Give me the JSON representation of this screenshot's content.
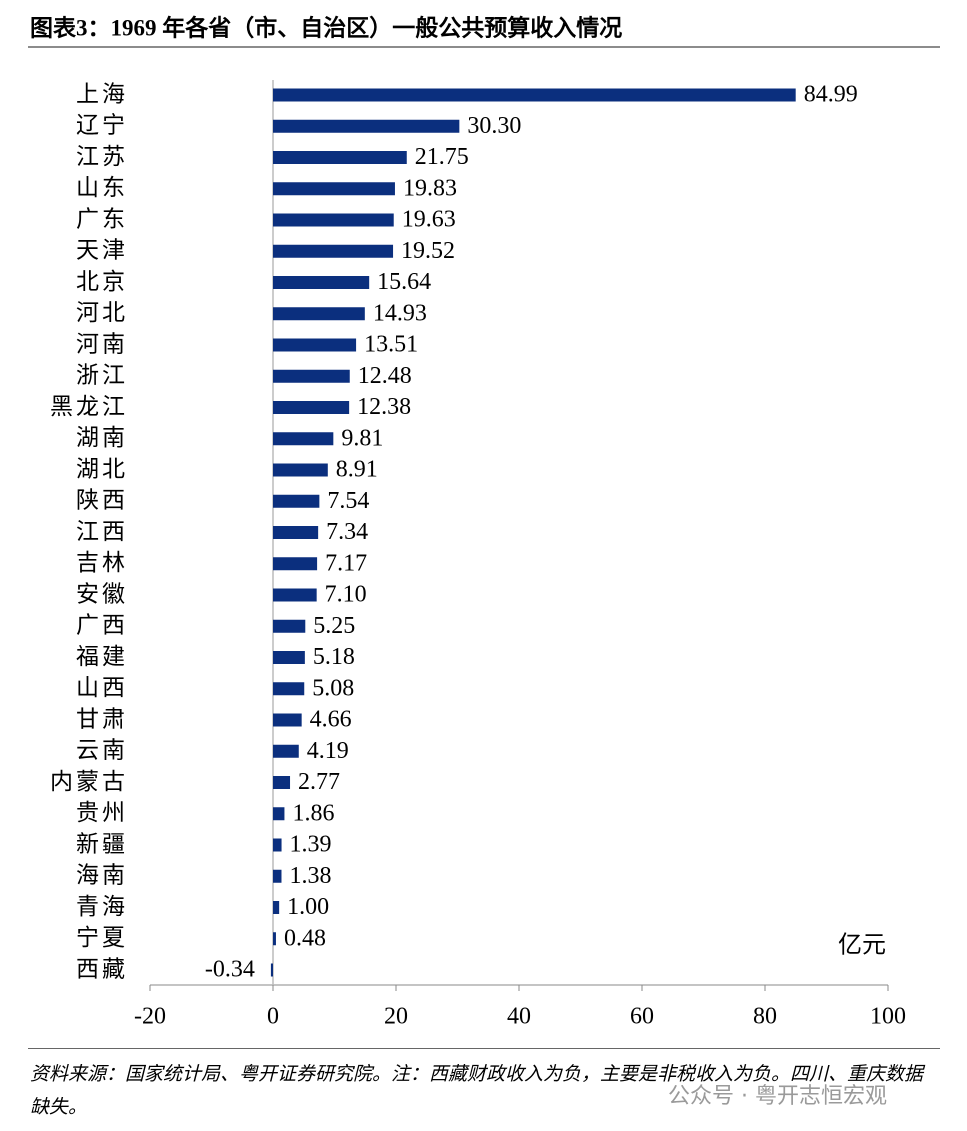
{
  "chart_data": {
    "type": "hbar",
    "title": "图表3：1969 年各省（市、自治区）一般公共预算收入情况",
    "categories": [
      "上海",
      "辽宁",
      "江苏",
      "山东",
      "广东",
      "天津",
      "北京",
      "河北",
      "河南",
      "浙江",
      "黑龙江",
      "湖南",
      "湖北",
      "陕西",
      "江西",
      "吉林",
      "安徽",
      "广西",
      "福建",
      "山西",
      "甘肃",
      "云南",
      "内蒙古",
      "贵州",
      "新疆",
      "海南",
      "青海",
      "宁夏",
      "西藏"
    ],
    "values": [
      84.99,
      30.3,
      21.75,
      19.83,
      19.63,
      19.52,
      15.64,
      14.93,
      13.51,
      12.48,
      12.38,
      9.81,
      8.91,
      7.54,
      7.34,
      7.17,
      7.1,
      5.25,
      5.18,
      5.08,
      4.66,
      4.19,
      2.77,
      1.86,
      1.39,
      1.38,
      1.0,
      0.48,
      -0.34
    ],
    "value_labels": [
      "84.99",
      "30.30",
      "21.75",
      "19.83",
      "19.63",
      "19.52",
      "15.64",
      "14.93",
      "13.51",
      "12.48",
      "12.38",
      "9.81",
      "8.91",
      "7.54",
      "7.34",
      "7.17",
      "7.10",
      "5.25",
      "5.18",
      "5.08",
      "4.66",
      "4.19",
      "2.77",
      "1.86",
      "1.39",
      "1.38",
      "1.00",
      "0.48",
      "-0.34"
    ],
    "color": "#0b2f7e",
    "xlim": [
      -20,
      100
    ],
    "xticks": [
      -20,
      0,
      20,
      40,
      60,
      80,
      100
    ],
    "unit_label": "亿元",
    "source": "资料来源：国家统计局、粤开证券研究院。注：西藏财政收入为负，主要是非税收入为负。四川、重庆数据缺失。",
    "watermark": "公众号 · 粤开志恒宏观"
  }
}
